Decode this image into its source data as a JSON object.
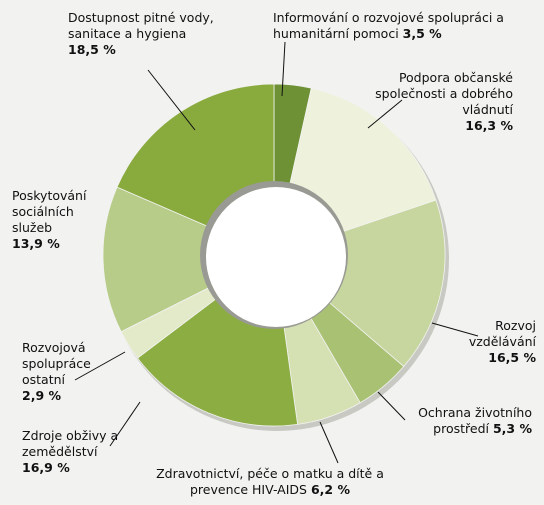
{
  "chart_data": {
    "type": "donut",
    "categories": [
      "Informování o rozvojové spolupráci a humanitární pomoci",
      "Podpora občanské společnosti a dobrého vládnutí",
      "Rozvoj vzdělávání",
      "Ochrana životního prostředí",
      "Zdravotnictví, péče o matku a dítě a prevence HIV-AIDS",
      "Zdroje obživy a zemědělství",
      "Rozvojová spolupráce ostatní",
      "Poskytování sociálních služeb",
      "Dostupnost pitné vody, sanitace a hygiena"
    ],
    "values": [
      3.5,
      16.3,
      16.5,
      5.3,
      6.2,
      16.9,
      2.9,
      13.9,
      18.5
    ],
    "value_labels": [
      "3,5 %",
      "16,3 %",
      "16,5 %",
      "5,3 %",
      "6,2 %",
      "16,9 %",
      "2,9 %",
      "13,9 %",
      "18,5 %"
    ],
    "colors": [
      "#6e9136",
      "#eef2dc",
      "#c6d69e",
      "#a9c173",
      "#d5e0b3",
      "#8cad42",
      "#e3eaca",
      "#b8cc8a",
      "#89aa3d"
    ]
  }
}
